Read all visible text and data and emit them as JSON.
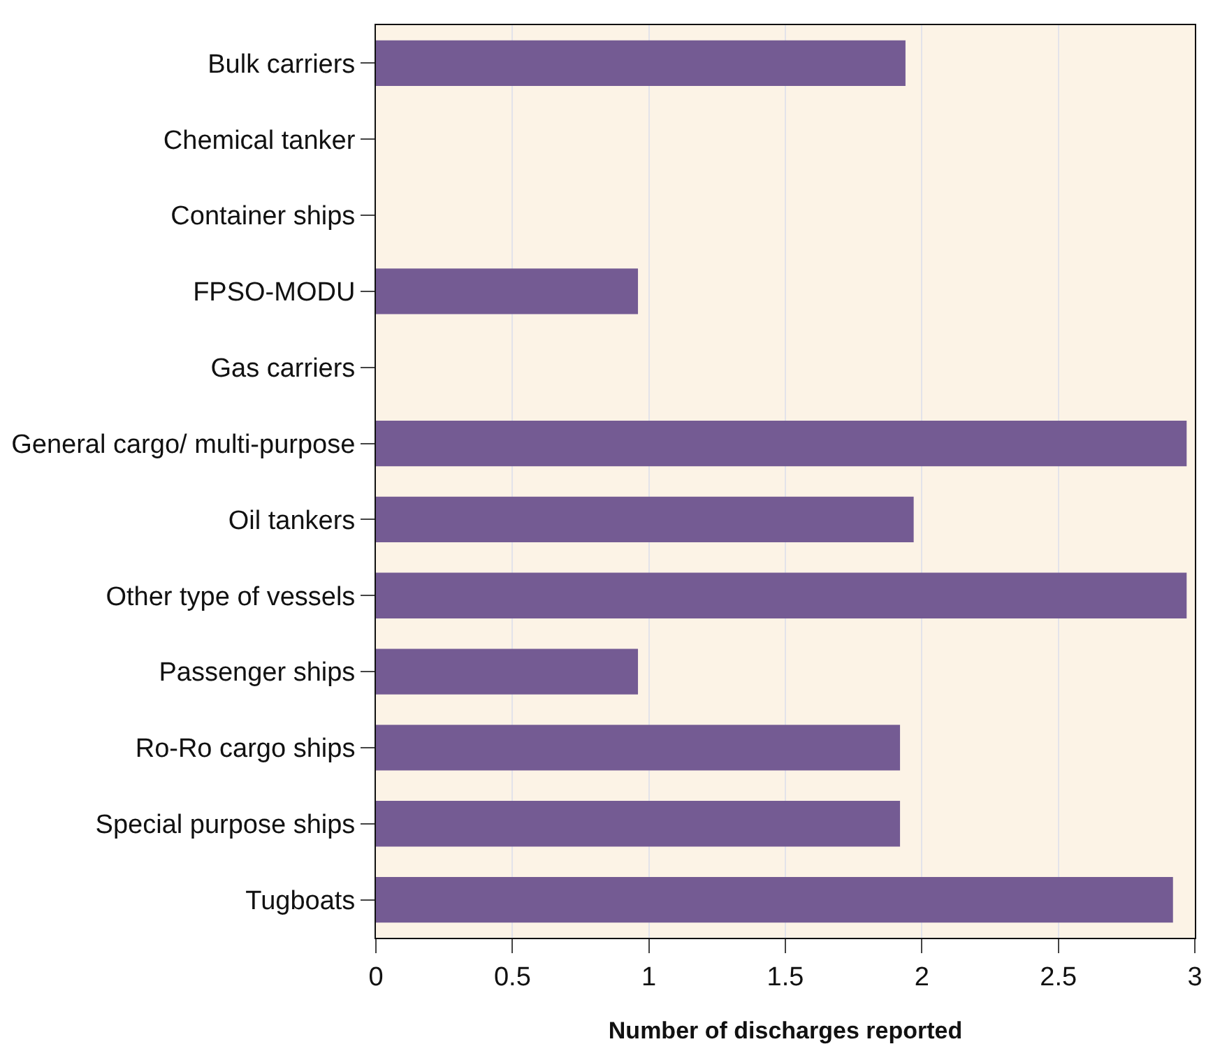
{
  "chart_data": {
    "type": "bar",
    "orientation": "horizontal",
    "xlabel": "Number of discharges reported",
    "categories": [
      "Bulk carriers",
      "Chemical tanker",
      "Container ships",
      "FPSO-MODU",
      "Gas carriers",
      "General cargo/ multi-purpose",
      "Oil tankers",
      "Other type of vessels",
      "Passenger ships",
      "Ro-Ro cargo ships",
      "Special purpose ships",
      "Tugboats"
    ],
    "values": [
      1.94,
      0,
      0,
      0.96,
      0,
      2.97,
      1.97,
      2.97,
      0.96,
      1.92,
      1.92,
      2.92
    ],
    "color": "#745b93",
    "xlim": [
      0,
      3
    ],
    "xticks": [
      0,
      0.5,
      1,
      1.5,
      2,
      2.5,
      3
    ],
    "grid": "x",
    "legend": false
  }
}
